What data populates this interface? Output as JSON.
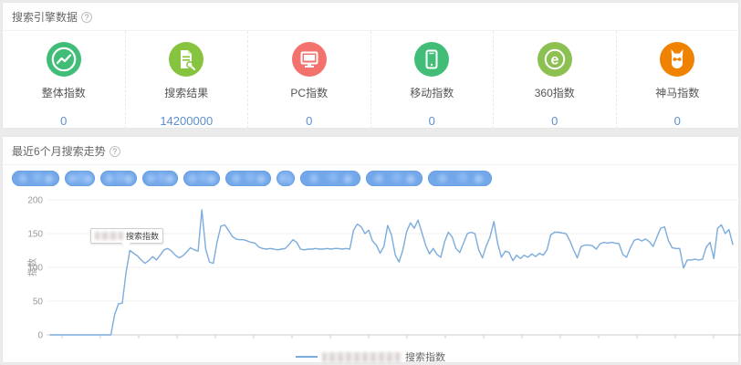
{
  "ui": {
    "help_symbol": "?",
    "page_bg": "#ebebeb",
    "value_color": "#5e8fce"
  },
  "engine_panel": {
    "title": "搜索引擎数据",
    "metrics": [
      {
        "label": "整体指数",
        "value": "0",
        "icon": "trend-line-icon",
        "color": "#42bd78"
      },
      {
        "label": "搜索结果",
        "value": "14200000",
        "icon": "doc-search-icon",
        "color": "#86c33e"
      },
      {
        "label": "PC指数",
        "value": "0",
        "icon": "monitor-icon",
        "color": "#f4726d"
      },
      {
        "label": "移动指数",
        "value": "0",
        "icon": "smartphone-icon",
        "color": "#42bd78"
      },
      {
        "label": "360指数",
        "value": "0",
        "icon": "360-browser-icon",
        "color": "#8cc152"
      },
      {
        "label": "神马指数",
        "value": "0",
        "icon": "shenma-alpaca-icon",
        "color": "#ef8201"
      }
    ]
  },
  "trend_panel": {
    "title": "最近6个月搜索走势",
    "keyword_tags": {
      "note": "blurred keyword filter pills",
      "color": "#72a7e9",
      "widths": [
        52,
        33,
        40,
        39,
        40,
        50,
        20,
        66,
        62,
        70
      ]
    },
    "tooltip": {
      "blurred_keyword": true,
      "suffix_text": "搜索指数"
    },
    "legend": {
      "blurred_keyword": true,
      "suffix_text": "搜索指数",
      "line_color": "#7cacdc"
    }
  },
  "chart_data": {
    "type": "line",
    "title": "最近6个月搜索走势",
    "xlabel": "",
    "ylabel": "指数",
    "ylim": [
      0,
      200
    ],
    "yticks": [
      0,
      50,
      100,
      150,
      200
    ],
    "xticklabels": [],
    "xtick_count": 18,
    "grid": true,
    "legend_position": "bottom",
    "series": [
      {
        "name": "搜索指数",
        "color": "#7cacdc",
        "values": [
          0,
          0,
          0,
          0,
          0,
          0,
          0,
          0,
          0,
          0,
          0,
          0,
          0,
          0,
          0,
          0,
          0,
          30,
          46,
          47,
          92,
          125,
          121,
          117,
          111,
          106,
          110,
          116,
          111,
          118,
          126,
          128,
          124,
          118,
          114,
          117,
          123,
          129,
          126,
          124,
          185,
          127,
          108,
          106,
          137,
          161,
          163,
          155,
          146,
          142,
          141,
          141,
          139,
          137,
          136,
          130,
          128,
          127,
          128,
          127,
          126,
          127,
          128,
          134,
          141,
          137,
          127,
          126,
          127,
          127,
          128,
          127,
          127,
          128,
          127,
          128,
          128,
          127,
          128,
          127,
          155,
          164,
          160,
          150,
          155,
          139,
          133,
          121,
          131,
          162,
          148,
          118,
          108,
          126,
          153,
          166,
          158,
          170,
          152,
          133,
          120,
          128,
          119,
          115,
          138,
          152,
          145,
          128,
          122,
          136,
          150,
          152,
          150,
          126,
          114,
          132,
          145,
          168,
          135,
          115,
          124,
          122,
          110,
          118,
          113,
          118,
          115,
          120,
          116,
          121,
          118,
          126,
          148,
          152,
          152,
          151,
          150,
          140,
          126,
          114,
          131,
          133,
          133,
          132,
          127,
          135,
          137,
          136,
          137,
          136,
          135,
          119,
          115,
          129,
          140,
          142,
          139,
          142,
          138,
          131,
          145,
          158,
          160,
          140,
          129,
          128,
          128,
          99,
          111,
          111,
          112,
          111,
          112,
          130,
          137,
          113,
          158,
          163,
          150,
          156,
          134
        ]
      }
    ]
  }
}
